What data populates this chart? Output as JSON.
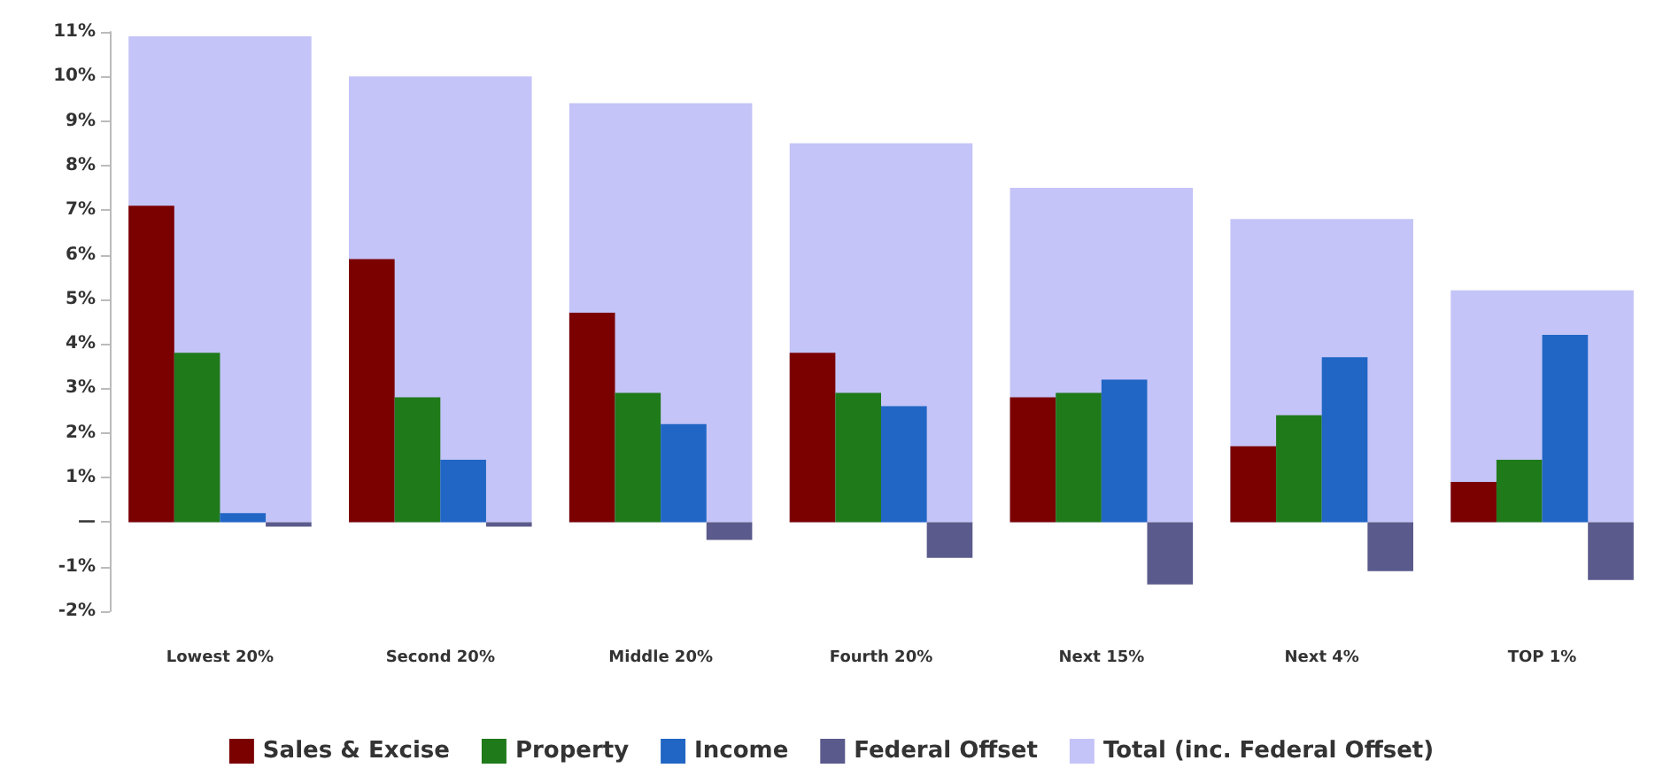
{
  "chart_data": {
    "type": "bar",
    "categories": [
      "Lowest 20%",
      "Second 20%",
      "Middle 20%",
      "Fourth 20%",
      "Next 15%",
      "Next 4%",
      "TOP 1%"
    ],
    "series": [
      {
        "name": "Sales & Excise",
        "color": "#7b0000",
        "values": [
          7.1,
          5.9,
          4.7,
          3.8,
          2.8,
          1.7,
          0.9
        ]
      },
      {
        "name": "Property",
        "color": "#1f7a1a",
        "values": [
          3.8,
          2.8,
          2.9,
          2.9,
          2.9,
          2.4,
          1.4
        ]
      },
      {
        "name": "Income",
        "color": "#2166c4",
        "values": [
          0.2,
          1.4,
          2.2,
          2.6,
          3.2,
          3.7,
          4.2
        ]
      },
      {
        "name": "Federal Offset",
        "color": "#5a5a8c",
        "values": [
          -0.1,
          -0.1,
          -0.4,
          -0.8,
          -1.4,
          -1.1,
          -1.3
        ]
      },
      {
        "name": "Total (inc. Federal Offset)",
        "color": "#c4c4f8",
        "values": [
          10.9,
          10.0,
          9.4,
          8.5,
          7.5,
          6.8,
          5.2
        ]
      }
    ],
    "ylim": [
      -2,
      11
    ],
    "yticks": [
      {
        "value": -2,
        "label": "-2%"
      },
      {
        "value": -1,
        "label": "-1%"
      },
      {
        "value": 0,
        "label": "—"
      },
      {
        "value": 1,
        "label": "1%"
      },
      {
        "value": 2,
        "label": "2%"
      },
      {
        "value": 3,
        "label": "3%"
      },
      {
        "value": 4,
        "label": "4%"
      },
      {
        "value": 5,
        "label": "5%"
      },
      {
        "value": 6,
        "label": "6%"
      },
      {
        "value": 7,
        "label": "7%"
      },
      {
        "value": 8,
        "label": "8%"
      },
      {
        "value": 9,
        "label": "9%"
      },
      {
        "value": 10,
        "label": "10%"
      },
      {
        "value": 11,
        "label": "11%"
      }
    ],
    "grid": false,
    "legend": "bottom"
  }
}
